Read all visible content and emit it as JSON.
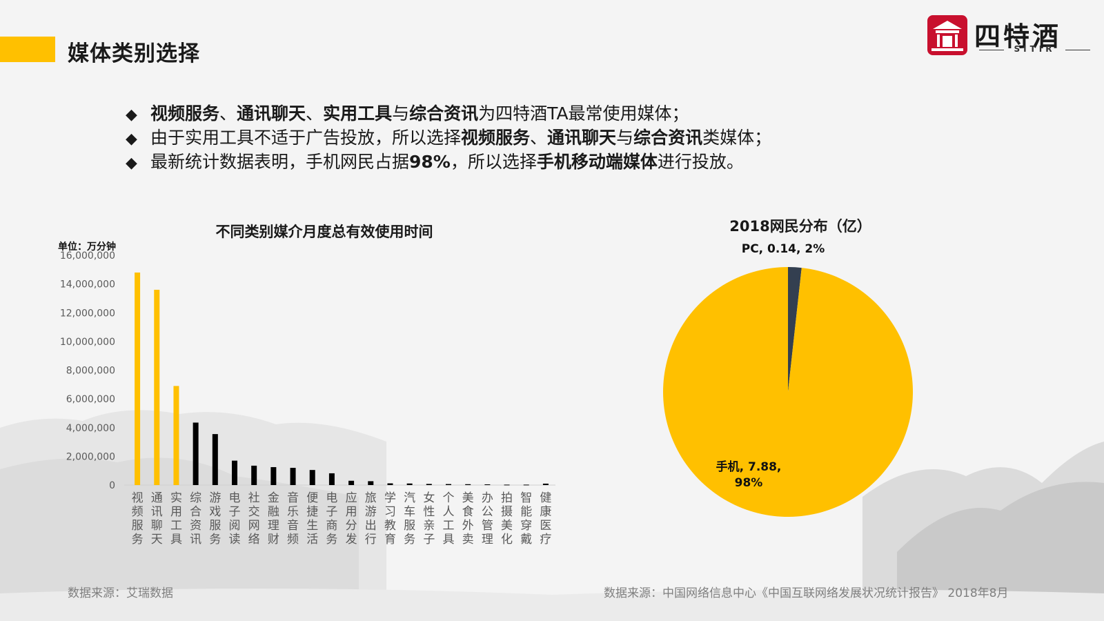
{
  "page_title": "媒体类别选择",
  "logo": {
    "name": "四特酒",
    "sub": "SITIR"
  },
  "bullets": [
    {
      "parts": [
        {
          "text": "视频服务",
          "bold": true
        },
        {
          "text": "、",
          "bold": false
        },
        {
          "text": "通讯聊天",
          "bold": true
        },
        {
          "text": "、",
          "bold": false
        },
        {
          "text": "实用工具",
          "bold": true
        },
        {
          "text": "与",
          "bold": false
        },
        {
          "text": "综合资讯",
          "bold": true
        },
        {
          "text": "为四特酒TA最常使用媒体；",
          "bold": false
        }
      ]
    },
    {
      "parts": [
        {
          "text": "由于实用工具不适于广告投放，所以选择",
          "bold": false
        },
        {
          "text": "视频服务",
          "bold": true
        },
        {
          "text": "、",
          "bold": false
        },
        {
          "text": "通讯聊天",
          "bold": true
        },
        {
          "text": "与",
          "bold": false
        },
        {
          "text": "综合资讯",
          "bold": true
        },
        {
          "text": "类媒体；",
          "bold": false
        }
      ]
    },
    {
      "parts": [
        {
          "text": "最新统计数据表明，手机网民占据",
          "bold": false
        },
        {
          "text": "98%",
          "bold": true
        },
        {
          "text": "，所以选择",
          "bold": false
        },
        {
          "text": "手机移动端媒体",
          "bold": true
        },
        {
          "text": "进行投放。",
          "bold": false
        }
      ]
    }
  ],
  "sources": {
    "left": "数据来源：艾瑞数据",
    "right": "数据来源：中国网络信息中心《中国互联网络发展状况统计报告》 2018年8月"
  },
  "colors": {
    "accent": "#ffc000",
    "dark_bar": "#000000",
    "pc_slice": "#333f50"
  },
  "chart_data": [
    {
      "type": "bar",
      "title": "不同类别媒介月度总有效使用时间",
      "ylabel": "单位：万分钟",
      "ylim": [
        0,
        16000000
      ],
      "yticks": [
        "0",
        "2,000,000",
        "4,000,000",
        "6,000,000",
        "8,000,000",
        "10,000,000",
        "12,000,000",
        "14,000,000",
        "16,000,000"
      ],
      "categories": [
        "视频服务",
        "通讯聊天",
        "实用工具",
        "综合资讯",
        "游戏服务",
        "电子阅读",
        "社交网络",
        "金融理财",
        "音乐音频",
        "便捷生活",
        "电子商务",
        "应用分发",
        "旅游出行",
        "学习教育",
        "汽车服务",
        "女性亲子",
        "个人工具",
        "美食外卖",
        "办公管理",
        "拍摄美化",
        "智能穿戴",
        "健康医疗"
      ],
      "values": [
        14800000,
        13600000,
        6900000,
        4350000,
        3550000,
        1700000,
        1350000,
        1250000,
        1200000,
        1050000,
        820000,
        300000,
        270000,
        120000,
        110000,
        80000,
        70000,
        60000,
        50000,
        30000,
        30000,
        100000
      ],
      "highlight_count": 3,
      "grid": false
    },
    {
      "type": "pie",
      "title": "2018网民分布（亿）",
      "slices": [
        {
          "name": "PC",
          "value": 0.14,
          "percent": "2%",
          "label": "PC, 0.14, 2%",
          "color": "#333f50"
        },
        {
          "name": "手机",
          "value": 7.88,
          "percent": "98%",
          "label_line1": "手机, 7.88,",
          "label_line2": "98%",
          "color": "#ffc000"
        }
      ]
    }
  ]
}
